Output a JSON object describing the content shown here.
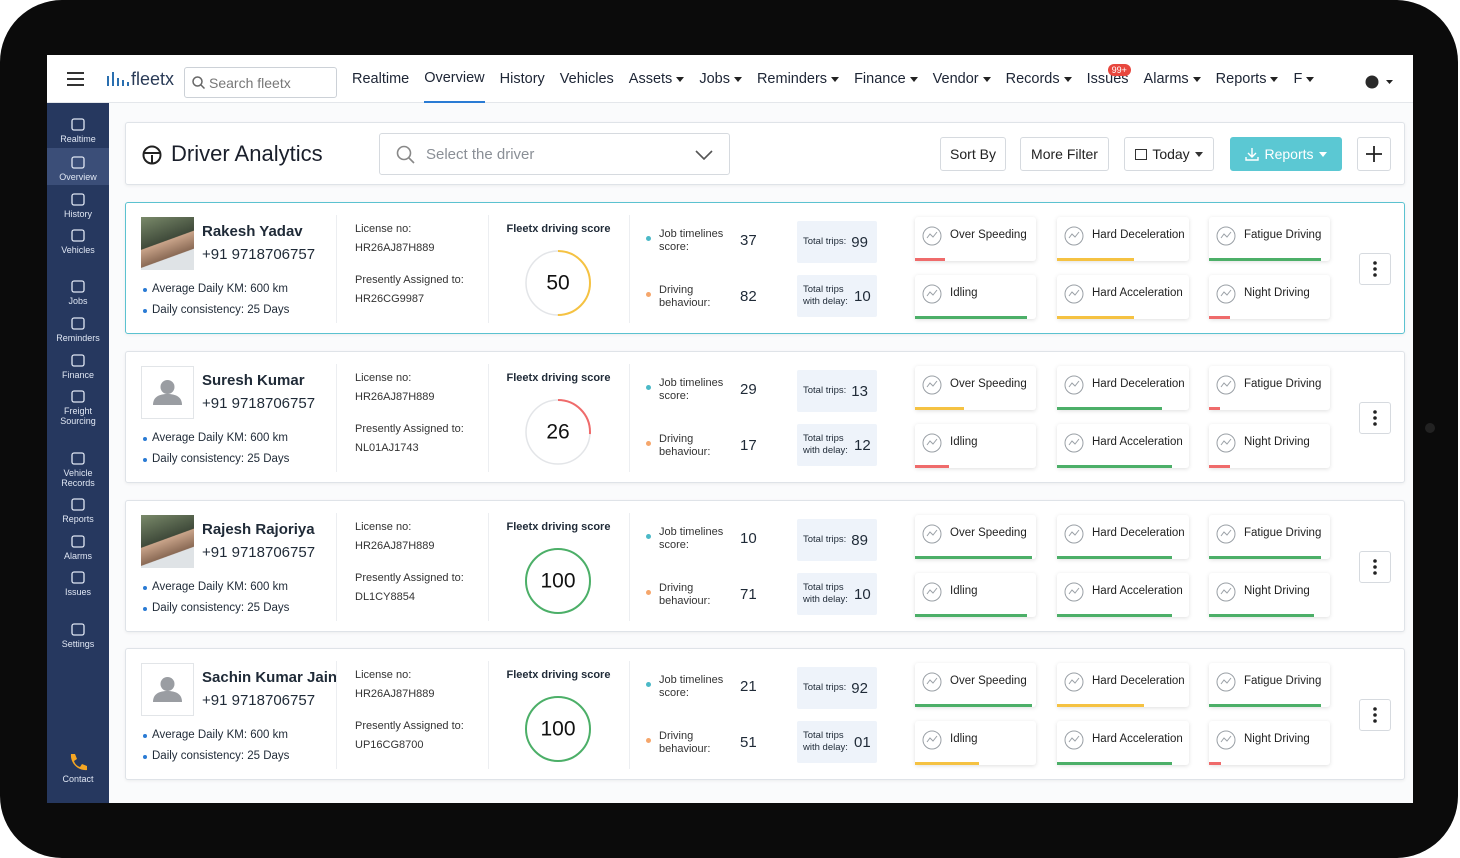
{
  "nav": {
    "brand": "fleetx",
    "search": "Search fleetx",
    "issues_badge": "99+",
    "items": [
      {
        "label": "Realtime",
        "dropdown": false
      },
      {
        "label": "Overview",
        "dropdown": false,
        "active": true
      },
      {
        "label": "History",
        "dropdown": false
      },
      {
        "label": "Vehicles",
        "dropdown": false
      },
      {
        "label": "Assets",
        "dropdown": true
      },
      {
        "label": "Jobs",
        "dropdown": true
      },
      {
        "label": "Reminders",
        "dropdown": true
      },
      {
        "label": "Finance",
        "dropdown": true
      },
      {
        "label": "Vendor",
        "dropdown": true
      },
      {
        "label": "Records",
        "dropdown": true
      },
      {
        "label": "Issues",
        "dropdown": false
      },
      {
        "label": "Alarms",
        "dropdown": true
      },
      {
        "label": "Reports",
        "dropdown": true
      },
      {
        "label": "F",
        "dropdown": true
      }
    ]
  },
  "sidebar": {
    "items": [
      "Realtime",
      "Overview",
      "History",
      "Vehicles",
      "Jobs",
      "Reminders",
      "Finance",
      "Freight Sourcing",
      "Vehicle Records",
      "Reports",
      "Alarms",
      "Issues",
      "Settings"
    ],
    "active": 1,
    "contact": "Contact"
  },
  "header": {
    "title": "Driver Analytics",
    "driver_select": "Select the driver",
    "sort_by": "Sort By",
    "more_filter": "More Filter",
    "date_filter": "Today",
    "reports": "Reports"
  },
  "score_lim": [
    0,
    100
  ],
  "progress_lim": [
    0,
    100
  ],
  "drivers": [
    {
      "name": "Rakesh Yadav",
      "phone": "+91 9718706757",
      "avatar": "photo",
      "avg_km": "Average Daily KM: 600 km",
      "consistency": "Daily consistency: 25 Days",
      "license_label": "License no:",
      "license": "HR26AJ87H889",
      "assigned_label": "Presently Assigned to:",
      "assigned": "HR26CG9987",
      "score_label": "Fleetx driving score",
      "score": 50,
      "score_color": "#f5c242",
      "job_label": "Job timelines score:",
      "job_score": 37,
      "behaviour_label": "Driving behaviour:",
      "behaviour_score": 82,
      "trips_label": "Total trips:",
      "trips": 99,
      "delay_label": "Total trips with delay:",
      "delay": 10,
      "events": [
        {
          "name": "Over Speeding",
          "progress": 26,
          "color": "#ef6b6b"
        },
        {
          "name": "Hard Deceleration",
          "progress": 60,
          "color": "#f5c242"
        },
        {
          "name": "Fatigue Driving",
          "progress": 96,
          "color": "#4caf68"
        },
        {
          "name": "Idling",
          "progress": 96,
          "color": "#4caf68"
        },
        {
          "name": "Hard Acceleration",
          "progress": 60,
          "color": "#f5c242"
        },
        {
          "name": "Night Driving",
          "progress": 18,
          "color": "#ef6b6b"
        }
      ]
    },
    {
      "name": "Suresh Kumar",
      "phone": "+91 9718706757",
      "avatar": "placeholder",
      "avg_km": "Average Daily KM: 600 km",
      "consistency": "Daily consistency: 25 Days",
      "license_label": "License no:",
      "license": "HR26AJ87H889",
      "assigned_label": "Presently Assigned to:",
      "assigned": "NL01AJ1743",
      "score_label": "Fleetx driving score",
      "score": 26,
      "score_color": "#ef6b6b",
      "job_label": "Job timelines score:",
      "job_score": 29,
      "behaviour_label": "Driving behaviour:",
      "behaviour_score": 17,
      "trips_label": "Total trips:",
      "trips": 13,
      "delay_label": "Total trips with delay:",
      "delay": 12,
      "events": [
        {
          "name": "Over Speeding",
          "progress": 42,
          "color": "#f5c242"
        },
        {
          "name": "Hard Deceleration",
          "progress": 82,
          "color": "#4caf68"
        },
        {
          "name": "Fatigue Driving",
          "progress": 9,
          "color": "#ef6b6b"
        },
        {
          "name": "Idling",
          "progress": 29,
          "color": "#ef6b6b"
        },
        {
          "name": "Hard Acceleration",
          "progress": 90,
          "color": "#4caf68"
        },
        {
          "name": "Night Driving",
          "progress": 18,
          "color": "#ef6b6b"
        }
      ]
    },
    {
      "name": "Rajesh Rajoriya",
      "phone": "+91 9718706757",
      "avatar": "photo",
      "avg_km": "Average Daily KM: 600 km",
      "consistency": "Daily consistency: 25 Days",
      "license_label": "License no:",
      "license": "HR26AJ87H889",
      "assigned_label": "Presently Assigned to:",
      "assigned": "DL1CY8854",
      "score_label": "Fleetx driving score",
      "score": 100,
      "score_color": "#4caf68",
      "job_label": "Job timelines score:",
      "job_score": 10,
      "behaviour_label": "Driving behaviour:",
      "behaviour_score": 71,
      "trips_label": "Total trips:",
      "trips": 89,
      "delay_label": "Total trips with delay:",
      "delay": 10,
      "events": [
        {
          "name": "Over Speeding",
          "progress": 100,
          "color": "#4caf68"
        },
        {
          "name": "Hard Deceleration",
          "progress": 90,
          "color": "#4caf68"
        },
        {
          "name": "Fatigue Driving",
          "progress": 96,
          "color": "#4caf68"
        },
        {
          "name": "Idling",
          "progress": 96,
          "color": "#4caf68"
        },
        {
          "name": "Hard Acceleration",
          "progress": 90,
          "color": "#4caf68"
        },
        {
          "name": "Night Driving",
          "progress": 90,
          "color": "#4caf68"
        }
      ]
    },
    {
      "name": "Sachin Kumar Jain",
      "phone": "+91 9718706757",
      "avatar": "placeholder",
      "avg_km": "Average Daily KM: 600 km",
      "consistency": "Daily consistency: 25 Days",
      "license_label": "License no:",
      "license": "HR26AJ87H889",
      "assigned_label": "Presently Assigned to:",
      "assigned": "UP16CG8700",
      "score_label": "Fleetx driving score",
      "score": 100,
      "score_color": "#4caf68",
      "job_label": "Job timelines score:",
      "job_score": 21,
      "behaviour_label": "Driving behaviour:",
      "behaviour_score": 51,
      "trips_label": "Total trips:",
      "trips": 92,
      "delay_label": "Total trips with delay:",
      "delay": "01",
      "events": [
        {
          "name": "Over Speeding",
          "progress": 100,
          "color": "#4caf68"
        },
        {
          "name": "Hard Deceleration",
          "progress": 68,
          "color": "#f5c242"
        },
        {
          "name": "Fatigue Driving",
          "progress": 96,
          "color": "#4caf68"
        },
        {
          "name": "Idling",
          "progress": 55,
          "color": "#f5c242"
        },
        {
          "name": "Hard Acceleration",
          "progress": 90,
          "color": "#4caf68"
        },
        {
          "name": "Night Driving",
          "progress": 10,
          "color": "#ef6b6b"
        }
      ]
    }
  ]
}
